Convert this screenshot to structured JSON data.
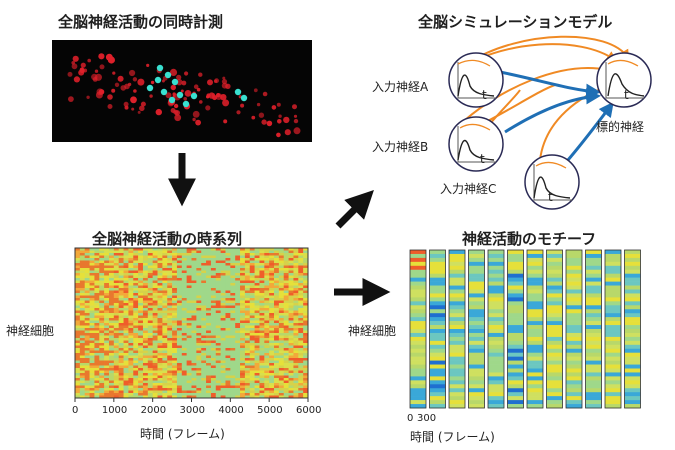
{
  "panels": {
    "recording_title": "全脳神経活動の同時計測",
    "simulation_title": "全脳シミュレーションモデル",
    "timeseries_title": "全脳神経活動の時系列",
    "motif_title": "神経活動のモチーフ"
  },
  "model": {
    "input_a": "入力神経A",
    "input_b": "入力神経B",
    "input_c": "入力神経C",
    "target": "標的神経",
    "time_symbol": "t"
  },
  "timeseries": {
    "ylabel": "神経細胞",
    "xlabel": "時間 (フレーム)",
    "xticks": [
      "0",
      "1000",
      "2000",
      "3000",
      "4000",
      "5000",
      "6000"
    ]
  },
  "motif": {
    "ylabel": "神経細胞",
    "xlabel": "時間 (フレーム)",
    "xticks": [
      "0",
      "300"
    ],
    "column_count": 12
  },
  "colors": {
    "input_arrow": "#1f6fb5",
    "feedback_arrow": "#f08a24",
    "cell_red": "#e0202a",
    "cell_cyan": "#39e0d0",
    "heat_yellow": "#e6e03a",
    "heat_green": "#9fd88a"
  }
}
